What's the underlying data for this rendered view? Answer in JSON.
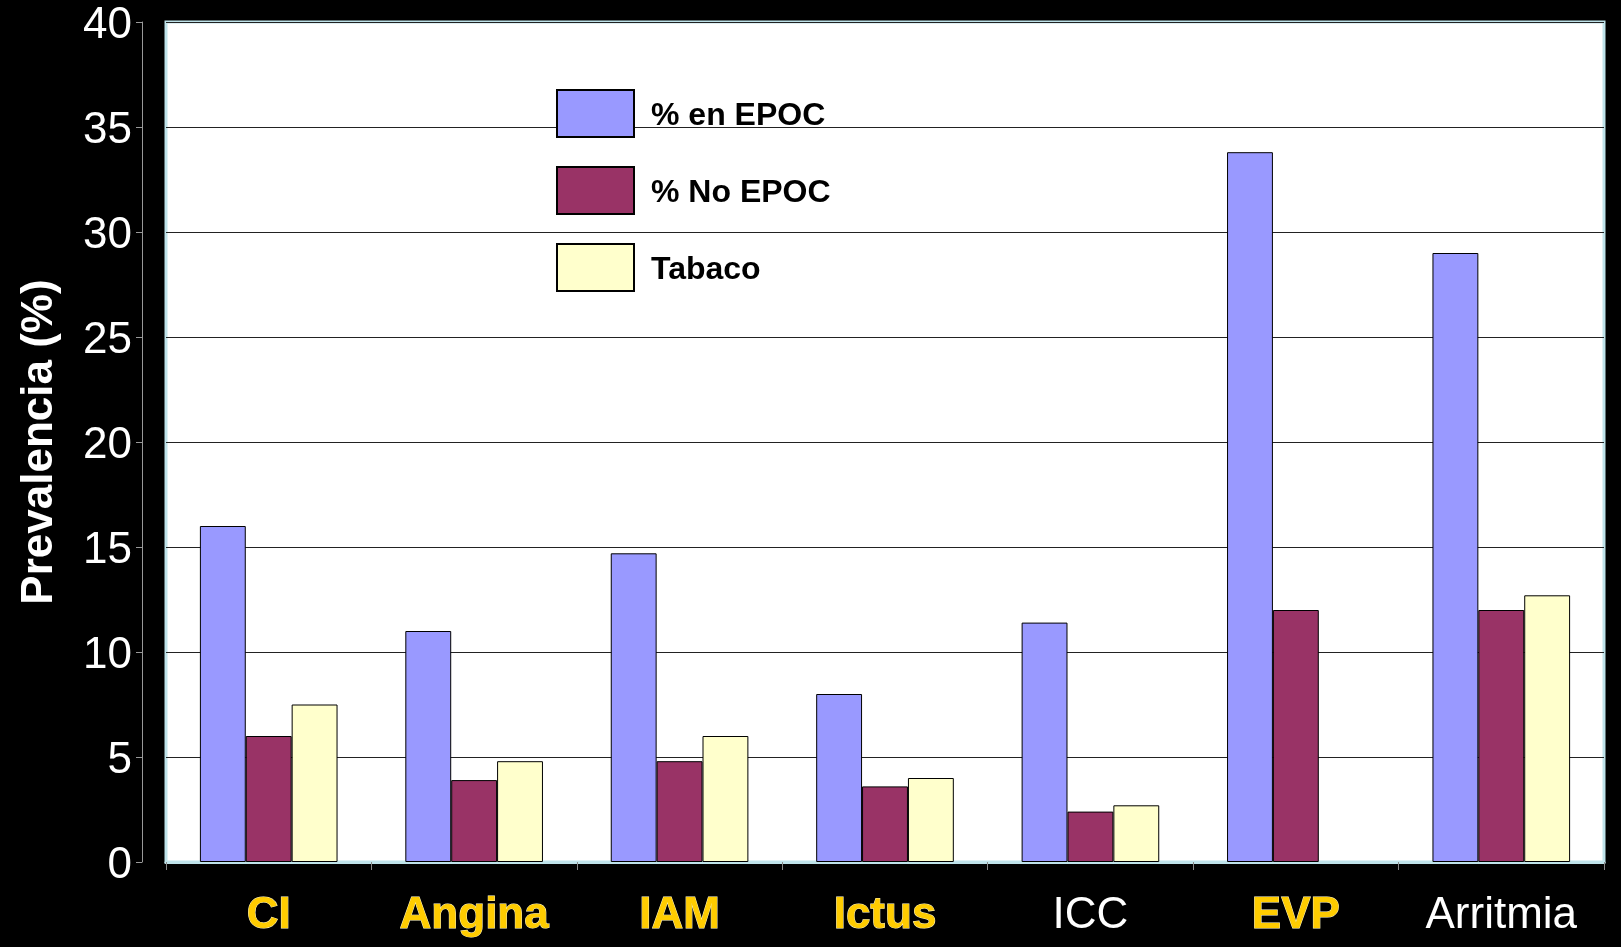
{
  "chart_data": {
    "type": "bar",
    "ylabel": "Prevalencia (%)",
    "categories": [
      "CI",
      "Angina",
      "IAM",
      "Ictus",
      "ICC",
      "EVP",
      "Arritmia"
    ],
    "series": [
      {
        "name": "% en EPOC",
        "color": "#9999ff",
        "values": [
          16.0,
          11.0,
          14.7,
          8.0,
          11.4,
          33.8,
          29.0
        ]
      },
      {
        "name": "% No EPOC",
        "color": "#993366",
        "values": [
          6.0,
          3.9,
          4.8,
          3.6,
          2.4,
          12.0,
          12.0
        ]
      },
      {
        "name": "Tabaco",
        "color": "#ffffcc",
        "values": [
          7.5,
          4.8,
          6.0,
          4.0,
          2.7,
          null,
          12.7
        ]
      }
    ],
    "ylim": [
      0,
      40
    ],
    "yticks": [
      0,
      5,
      10,
      15,
      20,
      25,
      30,
      35,
      40
    ],
    "grid": "y",
    "legend": "top left"
  }
}
